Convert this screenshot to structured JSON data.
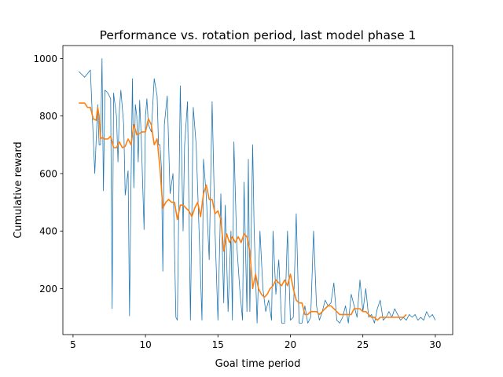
{
  "chart_data": {
    "type": "line",
    "title": "Performance vs. rotation period, last model phase 1",
    "xlabel": "Goal time period",
    "ylabel": "Cumulative reward",
    "xlim": [
      4.3,
      31.2
    ],
    "ylim": [
      40,
      1045
    ],
    "xticks": [
      5,
      10,
      15,
      20,
      25,
      30
    ],
    "yticks": [
      200,
      400,
      600,
      800,
      1000
    ],
    "grid": false,
    "legend": "none",
    "colors": {
      "raw": "#1f77b4",
      "smoothed": "#ff7f0e"
    },
    "series": [
      {
        "key": "raw",
        "stroke_width": 0.8,
        "x": [
          5.4,
          5.8,
          6.2,
          6.5,
          6.7,
          6.8,
          6.9,
          7.0,
          7.1,
          7.2,
          7.4,
          7.6,
          7.7,
          7.8,
          8.0,
          8.1,
          8.2,
          8.3,
          8.5,
          8.6,
          8.8,
          8.9,
          9.0,
          9.1,
          9.2,
          9.3,
          9.4,
          9.5,
          9.6,
          9.7,
          9.9,
          10.0,
          10.1,
          10.2,
          10.4,
          10.6,
          10.8,
          10.9,
          11.0,
          11.1,
          11.2,
          11.3,
          11.5,
          11.7,
          11.9,
          12.1,
          12.2,
          12.4,
          12.6,
          12.7,
          12.9,
          13.1,
          13.3,
          13.5,
          13.7,
          13.9,
          14.0,
          14.2,
          14.4,
          14.6,
          14.8,
          15.0,
          15.2,
          15.4,
          15.5,
          15.7,
          15.9,
          16.0,
          16.1,
          16.3,
          16.5,
          16.7,
          16.8,
          17.0,
          17.1,
          17.2,
          17.4,
          17.5,
          17.7,
          17.9,
          18.1,
          18.3,
          18.5,
          18.7,
          18.8,
          19.0,
          19.2,
          19.4,
          19.6,
          19.8,
          20.0,
          20.2,
          20.4,
          20.6,
          20.8,
          21.0,
          21.2,
          21.4,
          21.6,
          21.8,
          22.0,
          22.2,
          22.4,
          22.6,
          22.8,
          23.0,
          23.2,
          23.4,
          23.6,
          23.8,
          24.0,
          24.2,
          24.4,
          24.6,
          24.8,
          25.0,
          25.2,
          25.4,
          25.6,
          25.8,
          26.0,
          26.2,
          26.4,
          26.6,
          26.8,
          27.0,
          27.2,
          27.4,
          27.6,
          27.8,
          28.0,
          28.2,
          28.4,
          28.6,
          28.8,
          29.0,
          29.2,
          29.4,
          29.6,
          29.8,
          30.0
        ],
        "y": [
          955,
          935,
          960,
          600,
          840,
          700,
          700,
          1000,
          540,
          890,
          880,
          860,
          130,
          880,
          800,
          640,
          820,
          890,
          770,
          525,
          610,
          105,
          570,
          930,
          550,
          840,
          800,
          640,
          855,
          735,
          405,
          800,
          860,
          770,
          745,
          930,
          870,
          700,
          700,
          620,
          260,
          770,
          870,
          530,
          600,
          100,
          90,
          905,
          400,
          700,
          850,
          90,
          830,
          700,
          400,
          90,
          650,
          520,
          300,
          850,
          400,
          90,
          530,
          150,
          490,
          120,
          400,
          90,
          710,
          350,
          200,
          90,
          570,
          120,
          650,
          120,
          700,
          400,
          80,
          400,
          200,
          120,
          160,
          90,
          400,
          180,
          300,
          80,
          80,
          400,
          90,
          100,
          460,
          80,
          80,
          140,
          80,
          100,
          400,
          140,
          90,
          120,
          160,
          140,
          150,
          220,
          90,
          80,
          100,
          140,
          80,
          180,
          140,
          100,
          230,
          120,
          200,
          100,
          110,
          80,
          130,
          160,
          90,
          100,
          120,
          100,
          130,
          110,
          90,
          100,
          90,
          110,
          100,
          110,
          90,
          100,
          90,
          120,
          100,
          110,
          90
        ]
      },
      {
        "key": "smoothed",
        "stroke_width": 1.6,
        "x": [
          5.4,
          5.8,
          6.0,
          6.2,
          6.4,
          6.6,
          6.7,
          6.8,
          6.9,
          7.0,
          7.2,
          7.4,
          7.6,
          7.8,
          8.0,
          8.2,
          8.4,
          8.6,
          8.8,
          9.0,
          9.2,
          9.4,
          9.6,
          9.8,
          10.0,
          10.2,
          10.4,
          10.6,
          10.8,
          11.0,
          11.2,
          11.4,
          11.6,
          11.8,
          12.0,
          12.2,
          12.4,
          12.6,
          12.8,
          13.0,
          13.2,
          13.4,
          13.6,
          13.8,
          14.0,
          14.2,
          14.4,
          14.6,
          14.8,
          15.0,
          15.2,
          15.4,
          15.6,
          15.8,
          16.0,
          16.2,
          16.4,
          16.6,
          16.8,
          17.0,
          17.2,
          17.4,
          17.6,
          17.8,
          18.0,
          18.2,
          18.4,
          18.6,
          18.8,
          19.0,
          19.2,
          19.4,
          19.6,
          19.8,
          20.0,
          20.2,
          20.4,
          20.6,
          20.8,
          21.0,
          21.2,
          21.4,
          21.6,
          21.8,
          22.0,
          22.2,
          22.4,
          22.6,
          22.8,
          23.0,
          23.2,
          23.4,
          23.6,
          23.8,
          24.0,
          24.2,
          24.4,
          24.6,
          24.8,
          25.0,
          25.2,
          25.4,
          25.6,
          25.8,
          26.0,
          26.2,
          26.4,
          26.6,
          26.8,
          27.0,
          27.2,
          27.4,
          27.6,
          27.8,
          28.0
        ],
        "y": [
          845,
          845,
          830,
          830,
          790,
          785,
          830,
          800,
          720,
          725,
          720,
          720,
          730,
          690,
          690,
          710,
          690,
          695,
          720,
          700,
          770,
          735,
          740,
          745,
          745,
          790,
          770,
          700,
          720,
          620,
          480,
          500,
          510,
          500,
          500,
          440,
          490,
          490,
          480,
          470,
          450,
          480,
          500,
          450,
          530,
          560,
          510,
          510,
          460,
          470,
          440,
          330,
          390,
          360,
          380,
          360,
          380,
          360,
          390,
          380,
          330,
          200,
          250,
          200,
          180,
          170,
          180,
          200,
          210,
          230,
          220,
          210,
          230,
          210,
          250,
          200,
          160,
          150,
          150,
          110,
          110,
          120,
          120,
          120,
          110,
          120,
          130,
          140,
          140,
          130,
          120,
          110,
          110,
          110,
          110,
          110,
          130,
          130,
          130,
          120,
          120,
          110,
          100,
          100,
          90,
          100,
          100,
          100,
          100,
          100,
          100,
          100,
          100,
          100,
          110
        ]
      }
    ]
  }
}
